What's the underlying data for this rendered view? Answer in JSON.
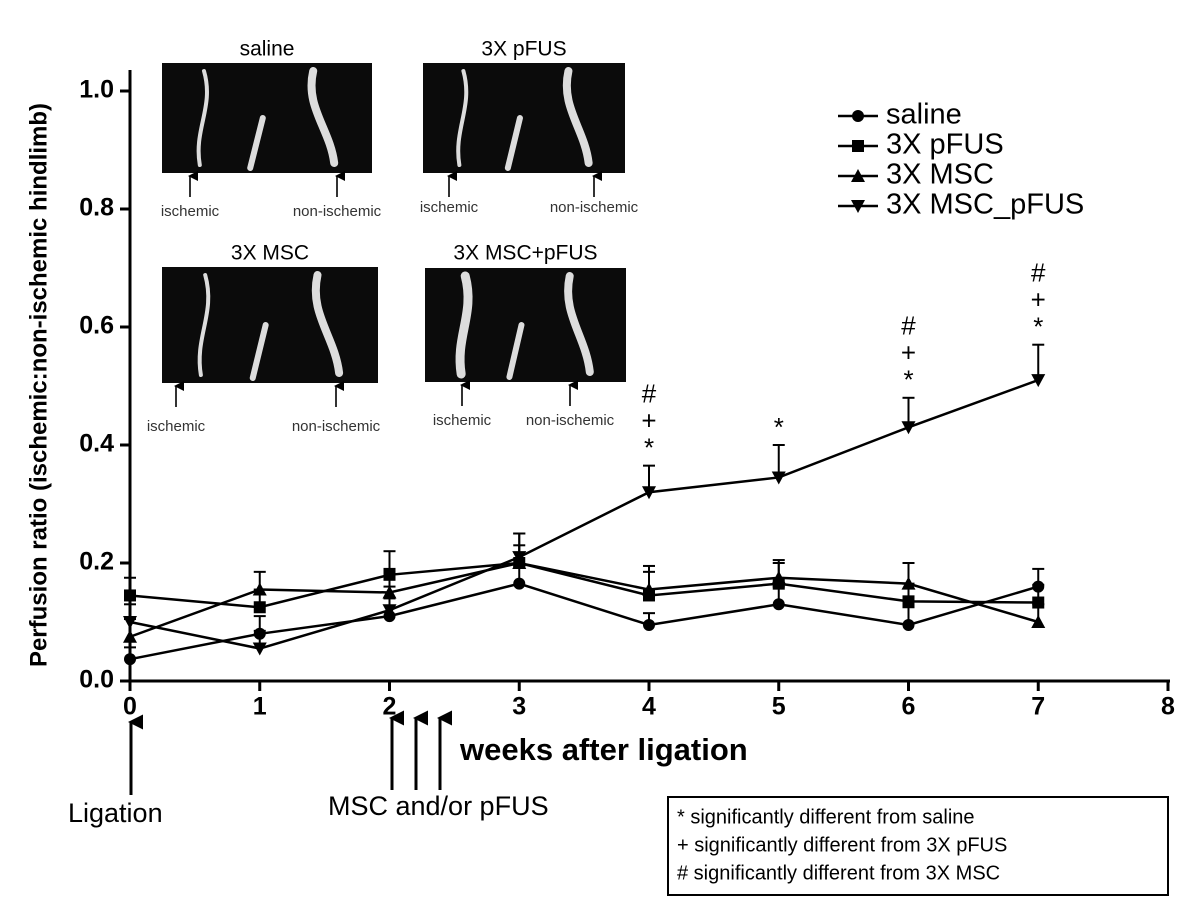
{
  "chart_data": {
    "type": "line",
    "y_label": "Perfusion ratio (ischemic:non-ischemic hindlimb)",
    "x_label": "weeks after ligation",
    "x": [
      0,
      1,
      2,
      3,
      4,
      5,
      6,
      7
    ],
    "xlim": [
      0,
      8
    ],
    "xticks": [
      0,
      1,
      2,
      3,
      4,
      5,
      6,
      7,
      8
    ],
    "ylim": [
      0,
      1
    ],
    "yticks": [
      {
        "value": 0,
        "label": "0.0"
      },
      0.2,
      0.4,
      0.6,
      0.8,
      {
        "value": 1,
        "label": "1.0"
      }
    ],
    "series": [
      {
        "name": "saline",
        "color": "#000000",
        "marker": "circle",
        "values": [
          0.037,
          0.08,
          0.11,
          0.165,
          0.095,
          0.13,
          0.095,
          0.16
        ],
        "errors": [
          0.02,
          0.03,
          0.03,
          0.03,
          0.02,
          0.03,
          0.03,
          0.03
        ]
      },
      {
        "name": "3X pFUS",
        "color": "#000000",
        "marker": "square",
        "values": [
          0.145,
          0.125,
          0.18,
          0.2,
          0.145,
          0.165,
          0.135,
          0.133
        ],
        "errors": [
          0.03,
          0.03,
          0.04,
          0.05,
          0.04,
          0.035,
          0.03,
          0.03
        ]
      },
      {
        "name": "3X MSC",
        "color": "#000000",
        "marker": "triangle",
        "values": [
          0.075,
          0.155,
          0.15,
          0.2,
          0.155,
          0.175,
          0.165,
          0.1
        ],
        "errors": [
          0.03,
          0.03,
          0.04,
          0.03,
          0.04,
          0.03,
          0.035,
          0.03
        ]
      },
      {
        "name": "3X MSC_pFUS",
        "color": "#000000",
        "marker": "triangle-down",
        "values": [
          0.1,
          0.055,
          0.12,
          0.21,
          0.32,
          0.345,
          0.43,
          0.51
        ],
        "errors": [
          0.03,
          0.03,
          0.04,
          0.04,
          0.045,
          0.055,
          0.05,
          0.06
        ]
      }
    ],
    "annotations": [
      {
        "x": 4,
        "labels": [
          "#",
          "+",
          "*"
        ]
      },
      {
        "x": 5,
        "labels": [
          "*"
        ]
      },
      {
        "x": 6,
        "labels": [
          "#",
          "+",
          "*"
        ]
      },
      {
        "x": 7,
        "labels": [
          "#",
          "+",
          "*"
        ]
      }
    ],
    "events": [
      "Ligation",
      "MSC and/or pFUS"
    ],
    "footnotes": [
      "* significantly different from saline",
      "+ significantly different from 3X pFUS",
      "# significantly different from 3X MSC"
    ],
    "insets": [
      {
        "title": "saline",
        "labels": [
          "ischemic",
          "non-ischemic"
        ]
      },
      {
        "title": "3X pFUS",
        "labels": [
          "ischemic",
          "non-ischemic"
        ]
      },
      {
        "title": "3X MSC",
        "labels": [
          "ischemic",
          "non-ischemic"
        ]
      },
      {
        "title": "3X MSC+pFUS",
        "labels": [
          "ischemic",
          "non-ischemic"
        ]
      }
    ]
  }
}
